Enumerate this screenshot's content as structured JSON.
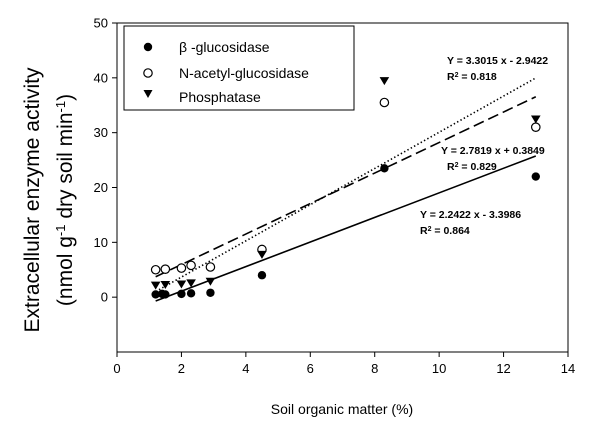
{
  "chart_data": {
    "type": "scatter",
    "title": "",
    "xlabel": "Soil organic matter (%)",
    "ylabel_line1": "Extracellular enzyme activity",
    "ylabel_line2_pre": "(nmol g",
    "ylabel_line2_sup1": "-1",
    "ylabel_line2_mid": " dry soil min",
    "ylabel_line2_sup2": "-1",
    "ylabel_line2_post": ")",
    "xlim": [
      0,
      14
    ],
    "ylim": [
      -10,
      50
    ],
    "xticks": [
      0,
      2,
      4,
      6,
      8,
      10,
      12,
      14
    ],
    "yticks": [
      0,
      10,
      20,
      30,
      40,
      50
    ],
    "grid": false,
    "legend_position": "top-left",
    "series": [
      {
        "name": "β  -glucosidase",
        "marker": "filled-circle",
        "line_style": "solid",
        "x": [
          1.2,
          1.4,
          1.5,
          2.0,
          2.3,
          2.9,
          4.5,
          8.3,
          13.0
        ],
        "y": [
          0.5,
          0.6,
          0.5,
          0.6,
          0.7,
          0.8,
          4.0,
          23.5,
          22.0
        ],
        "fit": {
          "slope": 2.2422,
          "intercept": -3.3986
        },
        "equation": "Y = 2.2422 x - 3.3986",
        "r2_value": " = 0.864"
      },
      {
        "name": "N-acetyl-glucosidase",
        "marker": "open-circle",
        "line_style": "dotted",
        "x": [
          1.2,
          1.5,
          2.0,
          2.3,
          2.9,
          4.5,
          8.3,
          13.0
        ],
        "y": [
          5.0,
          5.1,
          5.3,
          5.8,
          5.5,
          8.7,
          35.5,
          31.0
        ],
        "fit": {
          "slope": 3.3015,
          "intercept": -2.9422
        },
        "equation": "Y = 3.3015 x - 2.9422",
        "r2_value": " = 0.818"
      },
      {
        "name": "Phosphatase",
        "marker": "filled-triangle-down",
        "line_style": "dashed",
        "x": [
          1.2,
          1.5,
          2.0,
          2.3,
          2.9,
          4.5,
          8.3,
          13.0
        ],
        "y": [
          2.2,
          2.3,
          2.4,
          2.6,
          2.9,
          7.8,
          39.5,
          32.5
        ],
        "fit": {
          "slope": 2.7819,
          "intercept": 0.3849
        },
        "equation": "Y = 2.7819 x + 0.3849",
        "r2_value": " = 0.829"
      }
    ]
  }
}
